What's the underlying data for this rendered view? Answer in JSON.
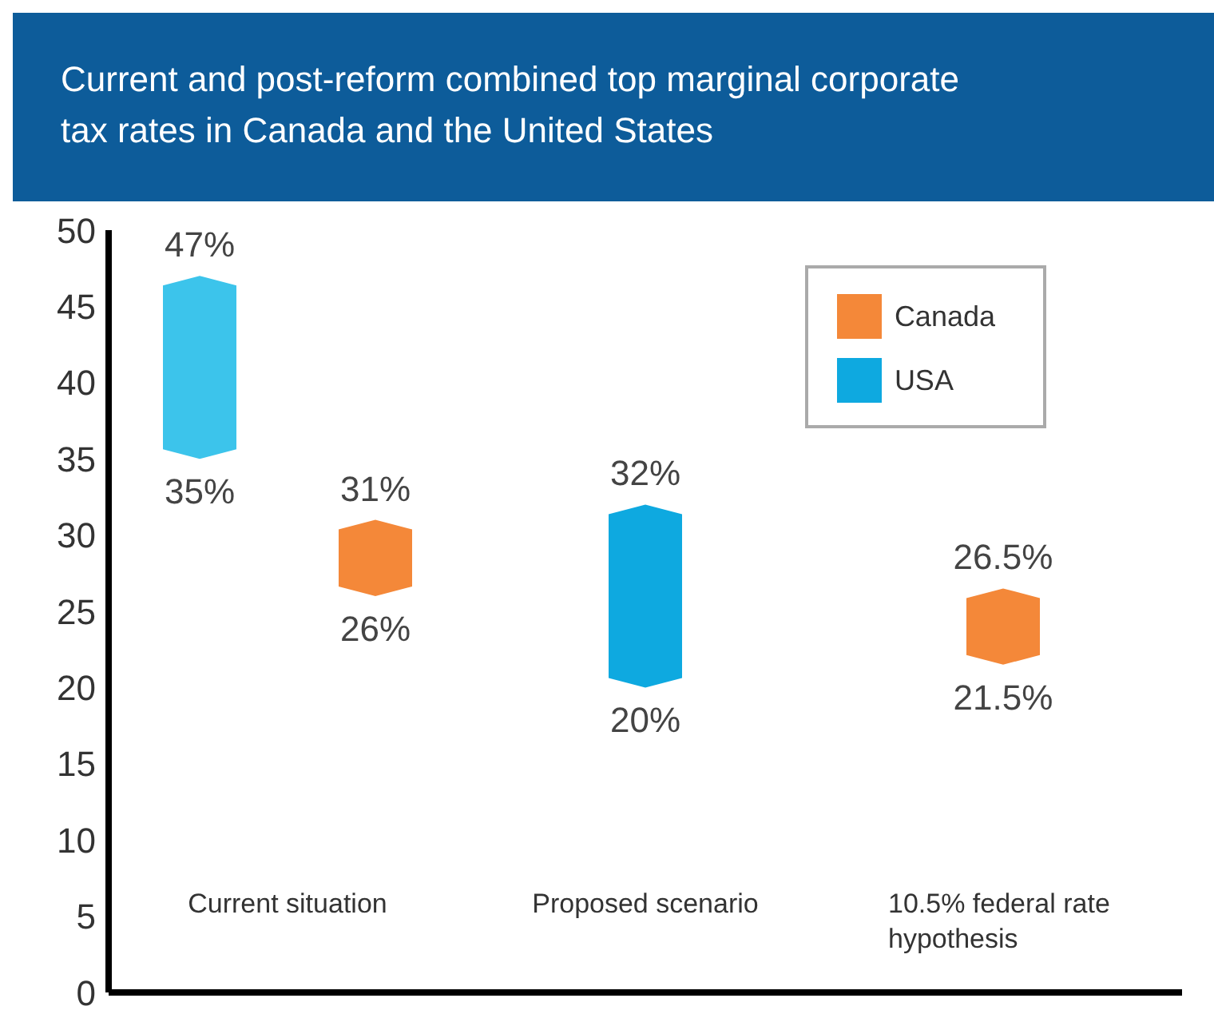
{
  "chart_data": {
    "type": "bar",
    "title": "Current and post-reform combined top marginal corporate tax rates in Canada and the United States",
    "categories": [
      "Current situation",
      "Proposed scenario",
      "10.5% federal rate hypothesis"
    ],
    "series": [
      {
        "name": "USA",
        "color": "#0ea9e0",
        "colors": [
          "#3cc4eb",
          "#0ea9e0",
          null
        ],
        "values": [
          12,
          12,
          null
        ],
        "base": [
          35,
          20,
          null
        ]
      },
      {
        "name": "Canada",
        "color": "#f48839",
        "colors": [
          "#f48839",
          null,
          "#f48839"
        ],
        "values": [
          5,
          null,
          5
        ],
        "base": [
          26,
          null,
          21.5
        ]
      }
    ],
    "ylim": [
      0,
      50
    ],
    "yticks": [
      0,
      5,
      10,
      15,
      20,
      25,
      30,
      35,
      40,
      45,
      50
    ],
    "grid": false,
    "legend": "top right",
    "annotations": [
      "47%",
      "35%",
      "31%",
      "26%",
      {
        "text": "32%",
        "x": "Proposed scenario",
        "y": 32
      },
      {
        "text": "20%",
        "x": "Proposed scenario",
        "y": 20
      },
      {
        "text": "26.5%",
        "x": "10.5% federal rate hypothesis",
        "y": 26.5
      },
      {
        "text": "21.5%",
        "x": "10.5% federal rate hypothesis",
        "y": 21.5
      }
    ]
  }
}
